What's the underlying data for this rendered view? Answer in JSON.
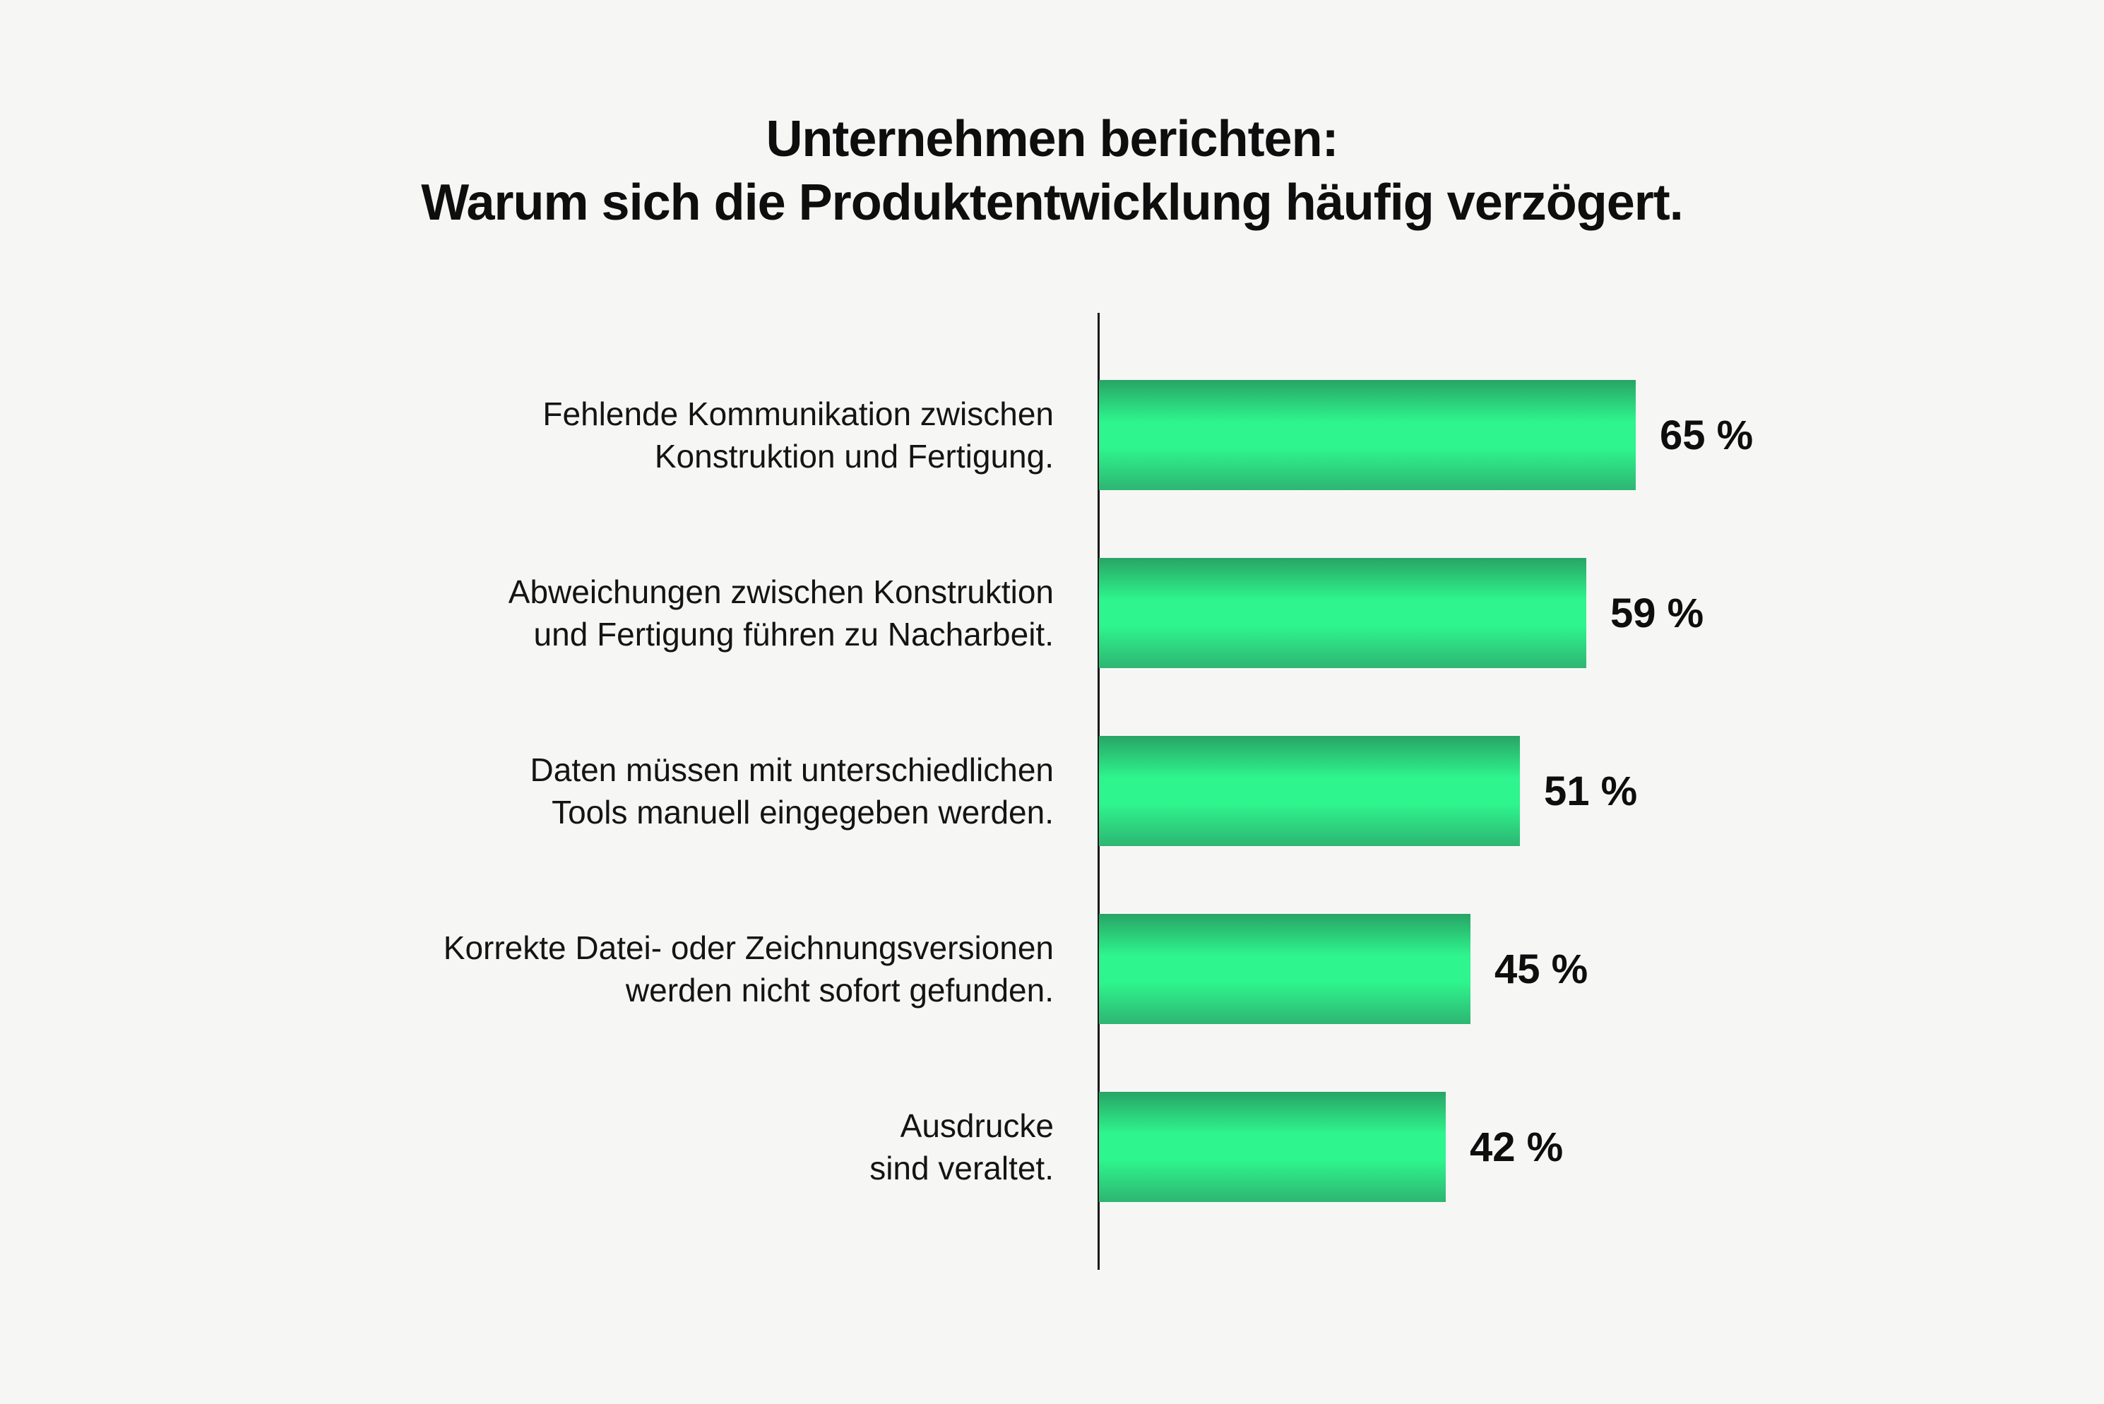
{
  "title": {
    "line1": "Unternehmen berichten:",
    "line2": "Warum sich die Produktentwicklung häufig verzögert."
  },
  "chart_data": {
    "type": "bar",
    "orientation": "horizontal",
    "title": "Unternehmen berichten: Warum sich die Produktentwicklung häufig verzögert.",
    "categories": [
      "Fehlende Kommunikation zwischen Konstruktion und Fertigung.",
      "Abweichungen zwischen Konstruktion und Fertigung führen zu Nacharbeit.",
      "Daten müssen mit unterschiedlichen Tools manuell eingegeben werden.",
      "Korrekte Datei- oder Zeichnungsversionen werden nicht sofort gefunden.",
      "Ausdrucke sind veraltet."
    ],
    "label_lines": [
      [
        "Fehlende Kommunikation zwischen",
        "Konstruktion und Fertigung."
      ],
      [
        "Abweichungen zwischen Konstruktion",
        "und Fertigung führen zu Nacharbeit."
      ],
      [
        "Daten müssen mit unterschiedlichen",
        "Tools manuell eingegeben werden."
      ],
      [
        "Korrekte Datei- oder Zeichnungsversionen",
        "werden nicht sofort gefunden."
      ],
      [
        "Ausdrucke",
        "sind veraltet."
      ]
    ],
    "values": [
      65,
      59,
      51,
      45,
      42
    ],
    "value_labels": [
      "65 %",
      "59 %",
      "51 %",
      "45 %",
      "42 %"
    ],
    "unit": "%",
    "xlim": [
      0,
      68
    ],
    "x_axis_visible": false,
    "gridlines": false,
    "legend": false,
    "colors": {
      "bar_gradient_top": "#28a465",
      "bar_bright_middle": "#2ef58d",
      "bar_gradient_bottom": "#2eb572",
      "background": "#f6f6f5",
      "text": "#111111",
      "axis": "#1a1a1a"
    }
  }
}
